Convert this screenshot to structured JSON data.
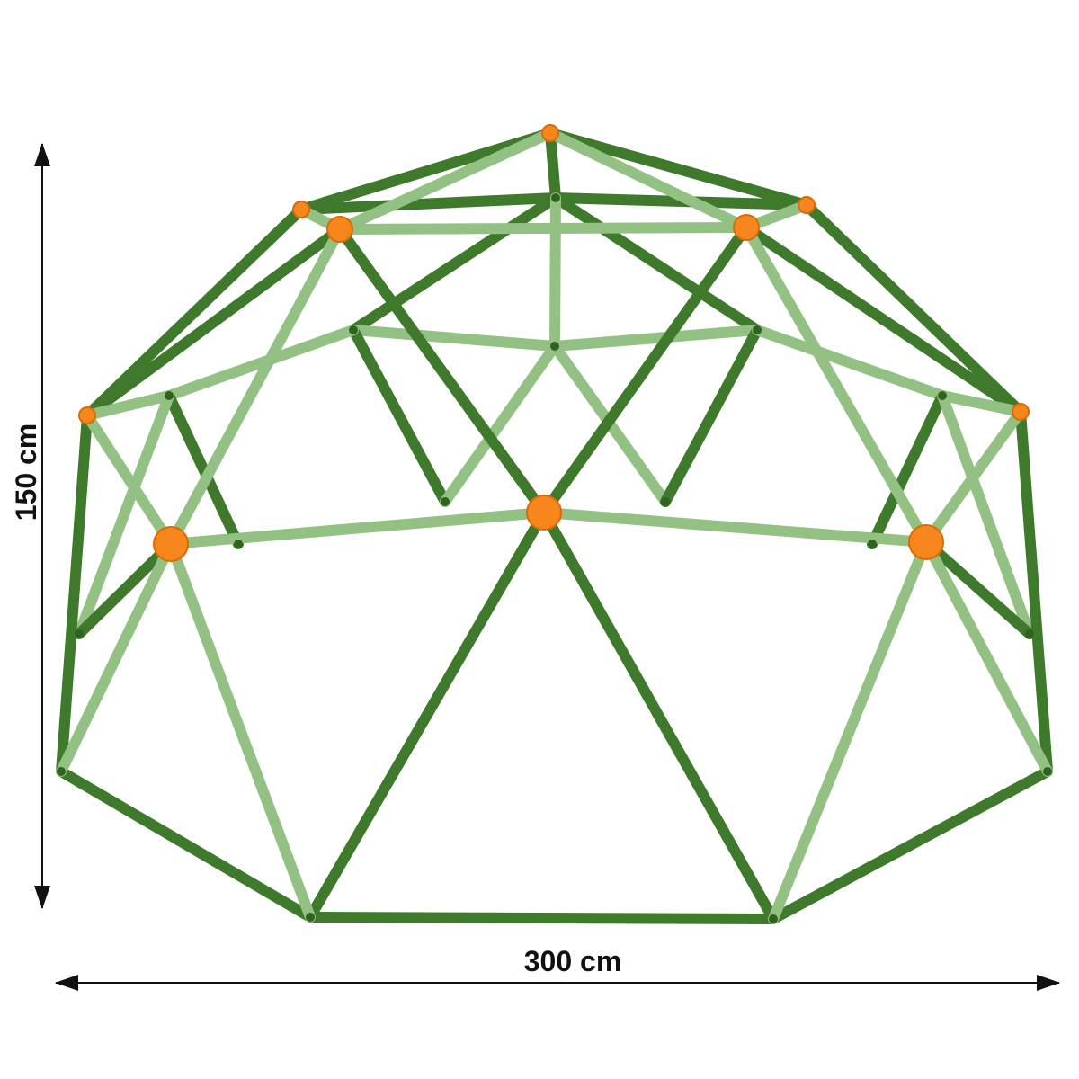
{
  "dimensions": {
    "height": "150 cm",
    "width": "300 cm"
  }
}
